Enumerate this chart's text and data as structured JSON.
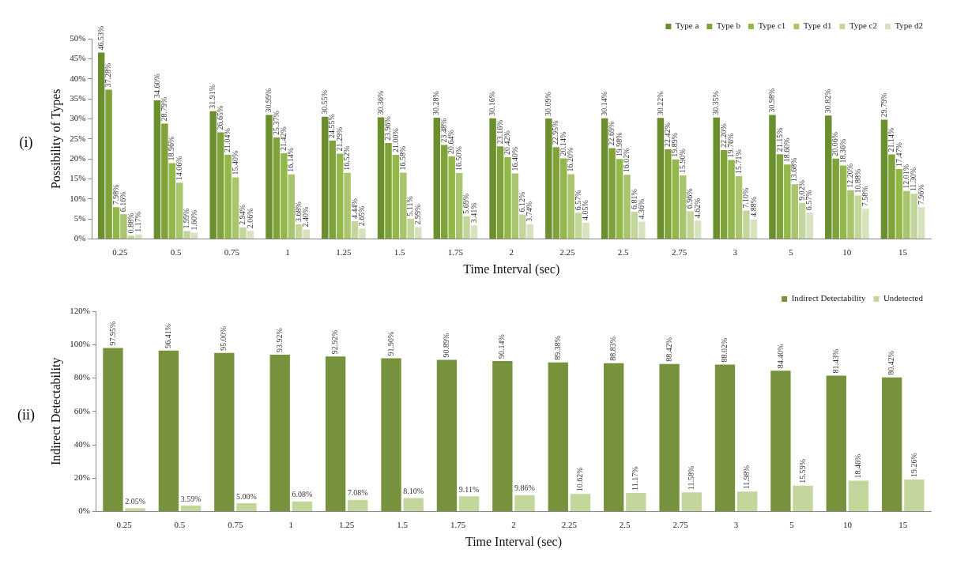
{
  "chart_data": [
    {
      "type": "bar",
      "ylabel": "Possibility of Types",
      "xlabel": "Time Interval (sec)",
      "annotations": [
        "(i)"
      ],
      "legend": "top right",
      "categories": [
        "0.25",
        "0.5",
        "0.75",
        "1",
        "1.25",
        "1.5",
        "1.75",
        "2",
        "2.25",
        "2.5",
        "2.75",
        "3",
        "5",
        "10",
        "15"
      ],
      "ylim": [
        0,
        50
      ],
      "yticks": [
        {
          "value": 0,
          "label": "0%"
        },
        {
          "value": 5,
          "label": "5%"
        },
        {
          "value": 10,
          "label": "10%"
        },
        {
          "value": 15,
          "label": "15%"
        },
        {
          "value": 20,
          "label": "20%"
        },
        {
          "value": 25,
          "label": "25%"
        },
        {
          "value": 30,
          "label": "30%"
        },
        {
          "value": 35,
          "label": "35%"
        },
        {
          "value": 40,
          "label": "40%"
        },
        {
          "value": 45,
          "label": "45%"
        },
        {
          "value": 50,
          "label": "50%"
        }
      ],
      "series": [
        {
          "name": "Type a",
          "color": "#6b8e2f",
          "values": [
            46.53,
            34.6,
            31.91,
            30.99,
            30.55,
            30.36,
            30.28,
            30.16,
            30.09,
            30.14,
            30.22,
            30.35,
            30.98,
            30.82,
            29.79
          ],
          "value_labels": [
            "46.53%",
            "34.60%",
            "31.91%",
            "30.99%",
            "30.55%",
            "30.36%",
            "30.28%",
            "30.16%",
            "30.09%",
            "30.14%",
            "30.22%",
            "30.35%",
            "30.98%",
            "30.82%",
            "29.79%"
          ]
        },
        {
          "name": "Type b",
          "color": "#7fa33a",
          "values": [
            37.28,
            28.79,
            26.65,
            25.37,
            24.55,
            23.96,
            23.48,
            23.16,
            22.95,
            22.69,
            22.42,
            22.2,
            21.15,
            20.06,
            21.14
          ],
          "value_labels": [
            "37.28%",
            "28.79%",
            "26.65%",
            "25.37%",
            "24.55%",
            "23.96%",
            "23.48%",
            "23.16%",
            "22.95%",
            "22.69%",
            "22.42%",
            "22.20%",
            "21.15%",
            "20.06%",
            "21.14%"
          ]
        },
        {
          "name": "Type c1",
          "color": "#93b84a",
          "values": [
            7.98,
            18.96,
            21.04,
            21.42,
            21.29,
            21.0,
            20.64,
            20.42,
            20.14,
            19.98,
            19.89,
            19.76,
            18.6,
            18.36,
            17.47
          ],
          "value_labels": [
            "7.98%",
            "18.96%",
            "21.04%",
            "21.42%",
            "21.29%",
            "21.00%",
            "20.64%",
            "20.42%",
            "20.14%",
            "19.98%",
            "19.89%",
            "19.76%",
            "18.60%",
            "18.36%",
            "17.47%"
          ]
        },
        {
          "name": "Type d1",
          "color": "#a9c56e",
          "values": [
            6.16,
            14.06,
            15.4,
            16.14,
            16.52,
            16.58,
            16.5,
            16.4,
            16.2,
            16.02,
            15.9,
            15.71,
            13.68,
            12.2,
            12.01
          ],
          "value_labels": [
            "6.16%",
            "14.06%",
            "15.40%",
            "16.14%",
            "16.52%",
            "16.58%",
            "16.50%",
            "16.40%",
            "16.20%",
            "16.02%",
            "15.90%",
            "15.71%",
            "13.68%",
            "12.20%",
            "12.01%"
          ]
        },
        {
          "name": "Type c2",
          "color": "#c3d69b",
          "values": [
            0.88,
            1.99,
            2.94,
            3.68,
            4.44,
            5.11,
            5.69,
            6.12,
            6.57,
            6.81,
            6.96,
            7.1,
            9.02,
            10.88,
            11.3
          ],
          "value_labels": [
            "0.88%",
            "1.99%",
            "2.94%",
            "3.68%",
            "4.44%",
            "5.11%",
            "5.69%",
            "6.12%",
            "6.57%",
            "6.81%",
            "6.96%",
            "7.10%",
            "9.02%",
            "10.88%",
            "11.30%"
          ]
        },
        {
          "name": "Type d2",
          "color": "#d7e2bf",
          "values": [
            1.17,
            1.6,
            2.06,
            2.4,
            2.65,
            2.99,
            3.41,
            3.74,
            4.05,
            4.36,
            4.62,
            4.88,
            6.57,
            7.58,
            7.96
          ],
          "value_labels": [
            "1.17%",
            "1.60%",
            "2.06%",
            "2.40%",
            "2.65%",
            "2.99%",
            "3.41%",
            "3.74%",
            "4.05%",
            "4.36%",
            "4.62%",
            "4.88%",
            "6.57%",
            "7.58%",
            "7.96%"
          ]
        }
      ]
    },
    {
      "type": "bar",
      "ylabel": "Indirect Detectability",
      "xlabel": "Time Interval (sec)",
      "annotations": [
        "(ii)"
      ],
      "legend": "top right",
      "categories": [
        "0.25",
        "0.5",
        "0.75",
        "1",
        "1.25",
        "1.5",
        "1.75",
        "2",
        "2.25",
        "2.5",
        "2.75",
        "3",
        "5",
        "10",
        "15"
      ],
      "ylim": [
        0,
        120
      ],
      "yticks": [
        {
          "value": 0,
          "label": "0%"
        },
        {
          "value": 20,
          "label": "20%"
        },
        {
          "value": 40,
          "label": "40%"
        },
        {
          "value": 60,
          "label": "60%"
        },
        {
          "value": 80,
          "label": "80%"
        },
        {
          "value": 100,
          "label": "100%"
        },
        {
          "value": 120,
          "label": "120%"
        }
      ],
      "series": [
        {
          "name": "Indirect Detectability",
          "color": "#76923c",
          "values": [
            97.95,
            96.41,
            95.0,
            93.92,
            92.92,
            91.9,
            90.89,
            90.14,
            89.38,
            88.83,
            88.42,
            88.02,
            84.4,
            81.43,
            80.42
          ],
          "value_labels": [
            "97.95%",
            "96.41%",
            "95.00%",
            "93.92%",
            "92.92%",
            "91.90%",
            "90.89%",
            "90.14%",
            "89.38%",
            "88.83%",
            "88.42%",
            "88.02%",
            "84.40%",
            "81.43%",
            "80.42%"
          ]
        },
        {
          "name": "Undetected",
          "color": "#c3d69b",
          "values": [
            2.05,
            3.59,
            5.0,
            6.08,
            7.08,
            8.1,
            9.11,
            9.86,
            10.62,
            11.17,
            11.58,
            11.98,
            15.59,
            18.46,
            19.26
          ],
          "value_labels": [
            "2.05%",
            "3.59%",
            "5.00%",
            "6.08%",
            "7.08%",
            "8.10%",
            "9.11%",
            "9.86%",
            "10.62%",
            "11.17%",
            "11.58%",
            "11.98%",
            "15.59%",
            "18.46%",
            "19.26%"
          ]
        }
      ]
    }
  ]
}
